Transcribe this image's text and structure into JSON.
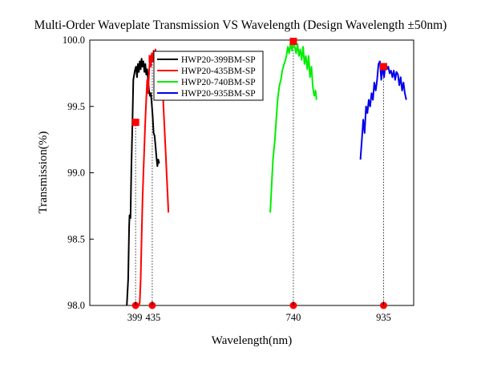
{
  "chart_data": {
    "type": "line",
    "title": "Multi-Order Waveplate Transmission VS Wavelength (Design Wavelength ±50nm)",
    "xlabel": "Wavelength(nm)",
    "ylabel": "Transmission(%)",
    "xlim": [
      300,
      1000
    ],
    "ylim": [
      98.0,
      100.0
    ],
    "xticks": [
      399,
      435,
      740,
      935
    ],
    "yticks": [
      "98.0",
      "98.5",
      "99.0",
      "99.5",
      "100.0"
    ],
    "grid": false,
    "legend_position": "top-left",
    "series": [
      {
        "name": "HWP20-399BM-SP",
        "color": "#000000",
        "x": [
          380,
          383,
          385,
          386,
          388,
          390,
          392,
          394,
          396,
          398,
          400,
          402,
          404,
          406,
          408,
          410,
          412,
          414,
          416,
          418,
          420,
          422,
          424,
          426,
          428,
          430,
          432,
          434,
          436,
          438,
          440,
          442,
          444,
          446,
          448,
          450
        ],
        "y": [
          98.0,
          98.2,
          98.6,
          98.68,
          98.66,
          99.05,
          99.35,
          99.7,
          99.74,
          99.78,
          99.8,
          99.72,
          99.82,
          99.76,
          99.84,
          99.78,
          99.86,
          99.8,
          99.84,
          99.76,
          99.82,
          99.74,
          99.78,
          99.7,
          99.62,
          99.58,
          99.6,
          99.52,
          99.42,
          99.3,
          99.28,
          99.2,
          99.12,
          99.05,
          99.1,
          99.07
        ]
      },
      {
        "name": "HWP20-435BM-SP",
        "color": "#ff0000",
        "x": [
          395,
          398,
          400,
          402,
          404,
          406,
          408,
          410,
          412,
          414,
          416,
          418,
          420,
          422,
          424,
          426,
          428,
          430,
          432,
          434,
          436,
          438,
          440,
          442,
          444,
          446,
          448,
          450,
          452,
          454,
          456,
          458,
          460,
          462,
          464,
          466,
          468,
          470
        ],
        "y": [
          98.0,
          98.0,
          98.0,
          98.0,
          98.0,
          98.0,
          98.02,
          98.2,
          98.5,
          98.8,
          99.0,
          99.2,
          99.4,
          99.55,
          99.7,
          99.6,
          99.75,
          99.86,
          99.8,
          99.9,
          99.85,
          99.92,
          99.88,
          99.93,
          99.82,
          99.87,
          99.75,
          99.7,
          99.8,
          99.9,
          99.75,
          99.6,
          99.45,
          99.3,
          99.15,
          99.0,
          98.85,
          98.7
        ]
      },
      {
        "name": "HWP20-740BM-SP",
        "color": "#00ee00",
        "x": [
          690,
          693,
          696,
          700,
          703,
          706,
          710,
          713,
          716,
          720,
          722,
          725,
          728,
          731,
          734,
          737,
          740,
          743,
          746,
          749,
          752,
          755,
          758,
          761,
          764,
          767,
          770,
          773,
          776,
          779,
          782,
          785,
          788,
          790
        ],
        "y": [
          98.7,
          98.9,
          99.1,
          99.25,
          99.4,
          99.55,
          99.66,
          99.7,
          99.77,
          99.82,
          99.84,
          99.88,
          99.95,
          99.9,
          99.98,
          99.92,
          99.98,
          99.95,
          99.9,
          99.97,
          99.88,
          99.93,
          99.85,
          99.95,
          99.82,
          99.88,
          99.78,
          99.88,
          99.72,
          99.8,
          99.65,
          99.58,
          99.62,
          99.55
        ]
      },
      {
        "name": "HWP20-935BM-SP",
        "color": "#0000ee",
        "x": [
          885,
          888,
          891,
          894,
          897,
          900,
          903,
          906,
          909,
          912,
          915,
          918,
          921,
          924,
          927,
          930,
          933,
          936,
          939,
          942,
          945,
          948,
          951,
          954,
          957,
          960,
          963,
          966,
          969,
          972,
          975,
          978,
          981,
          984
        ],
        "y": [
          99.1,
          99.25,
          99.4,
          99.3,
          99.5,
          99.45,
          99.55,
          99.5,
          99.6,
          99.55,
          99.68,
          99.62,
          99.7,
          99.82,
          99.84,
          99.7,
          99.8,
          99.72,
          99.82,
          99.78,
          99.8,
          99.75,
          99.77,
          99.72,
          99.77,
          99.7,
          99.76,
          99.74,
          99.66,
          99.72,
          99.62,
          99.68,
          99.6,
          99.55
        ]
      }
    ],
    "markers": [
      {
        "x": 399,
        "y": 99.38,
        "color": "#ff0000"
      },
      {
        "x": 435,
        "y": 99.86,
        "color": "#ff0000"
      },
      {
        "x": 740,
        "y": 99.99,
        "color": "#ff0000"
      },
      {
        "x": 935,
        "y": 99.8,
        "color": "#ff0000"
      }
    ]
  }
}
